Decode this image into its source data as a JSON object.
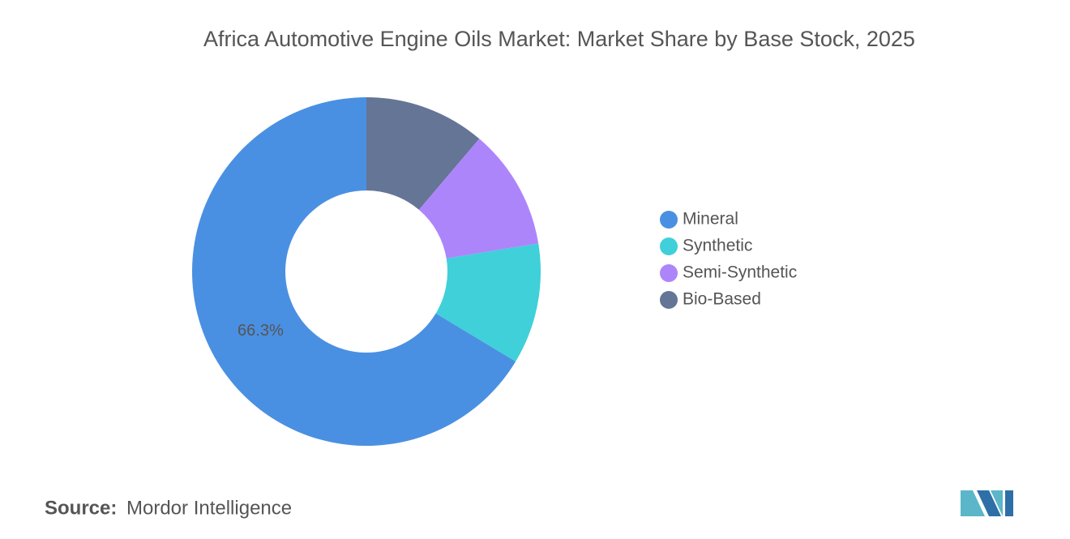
{
  "chart_data": {
    "type": "pie",
    "title": "Africa Automotive Engine Oils Market: Market Share by Base Stock, 2025",
    "categories": [
      "Mineral",
      "Synthetic",
      "Semi-Synthetic",
      "Bio-Based"
    ],
    "values": [
      66.3,
      11.2,
      11.2,
      11.2
    ],
    "value_labels": [
      "66.3%",
      null,
      null,
      null
    ],
    "colors": [
      "#4a90e2",
      "#3fd0d9",
      "#ad85fb",
      "#647595"
    ],
    "legend": "right"
  },
  "footer": {
    "source_label": "Source:",
    "source": "Mordor Intelligence"
  }
}
